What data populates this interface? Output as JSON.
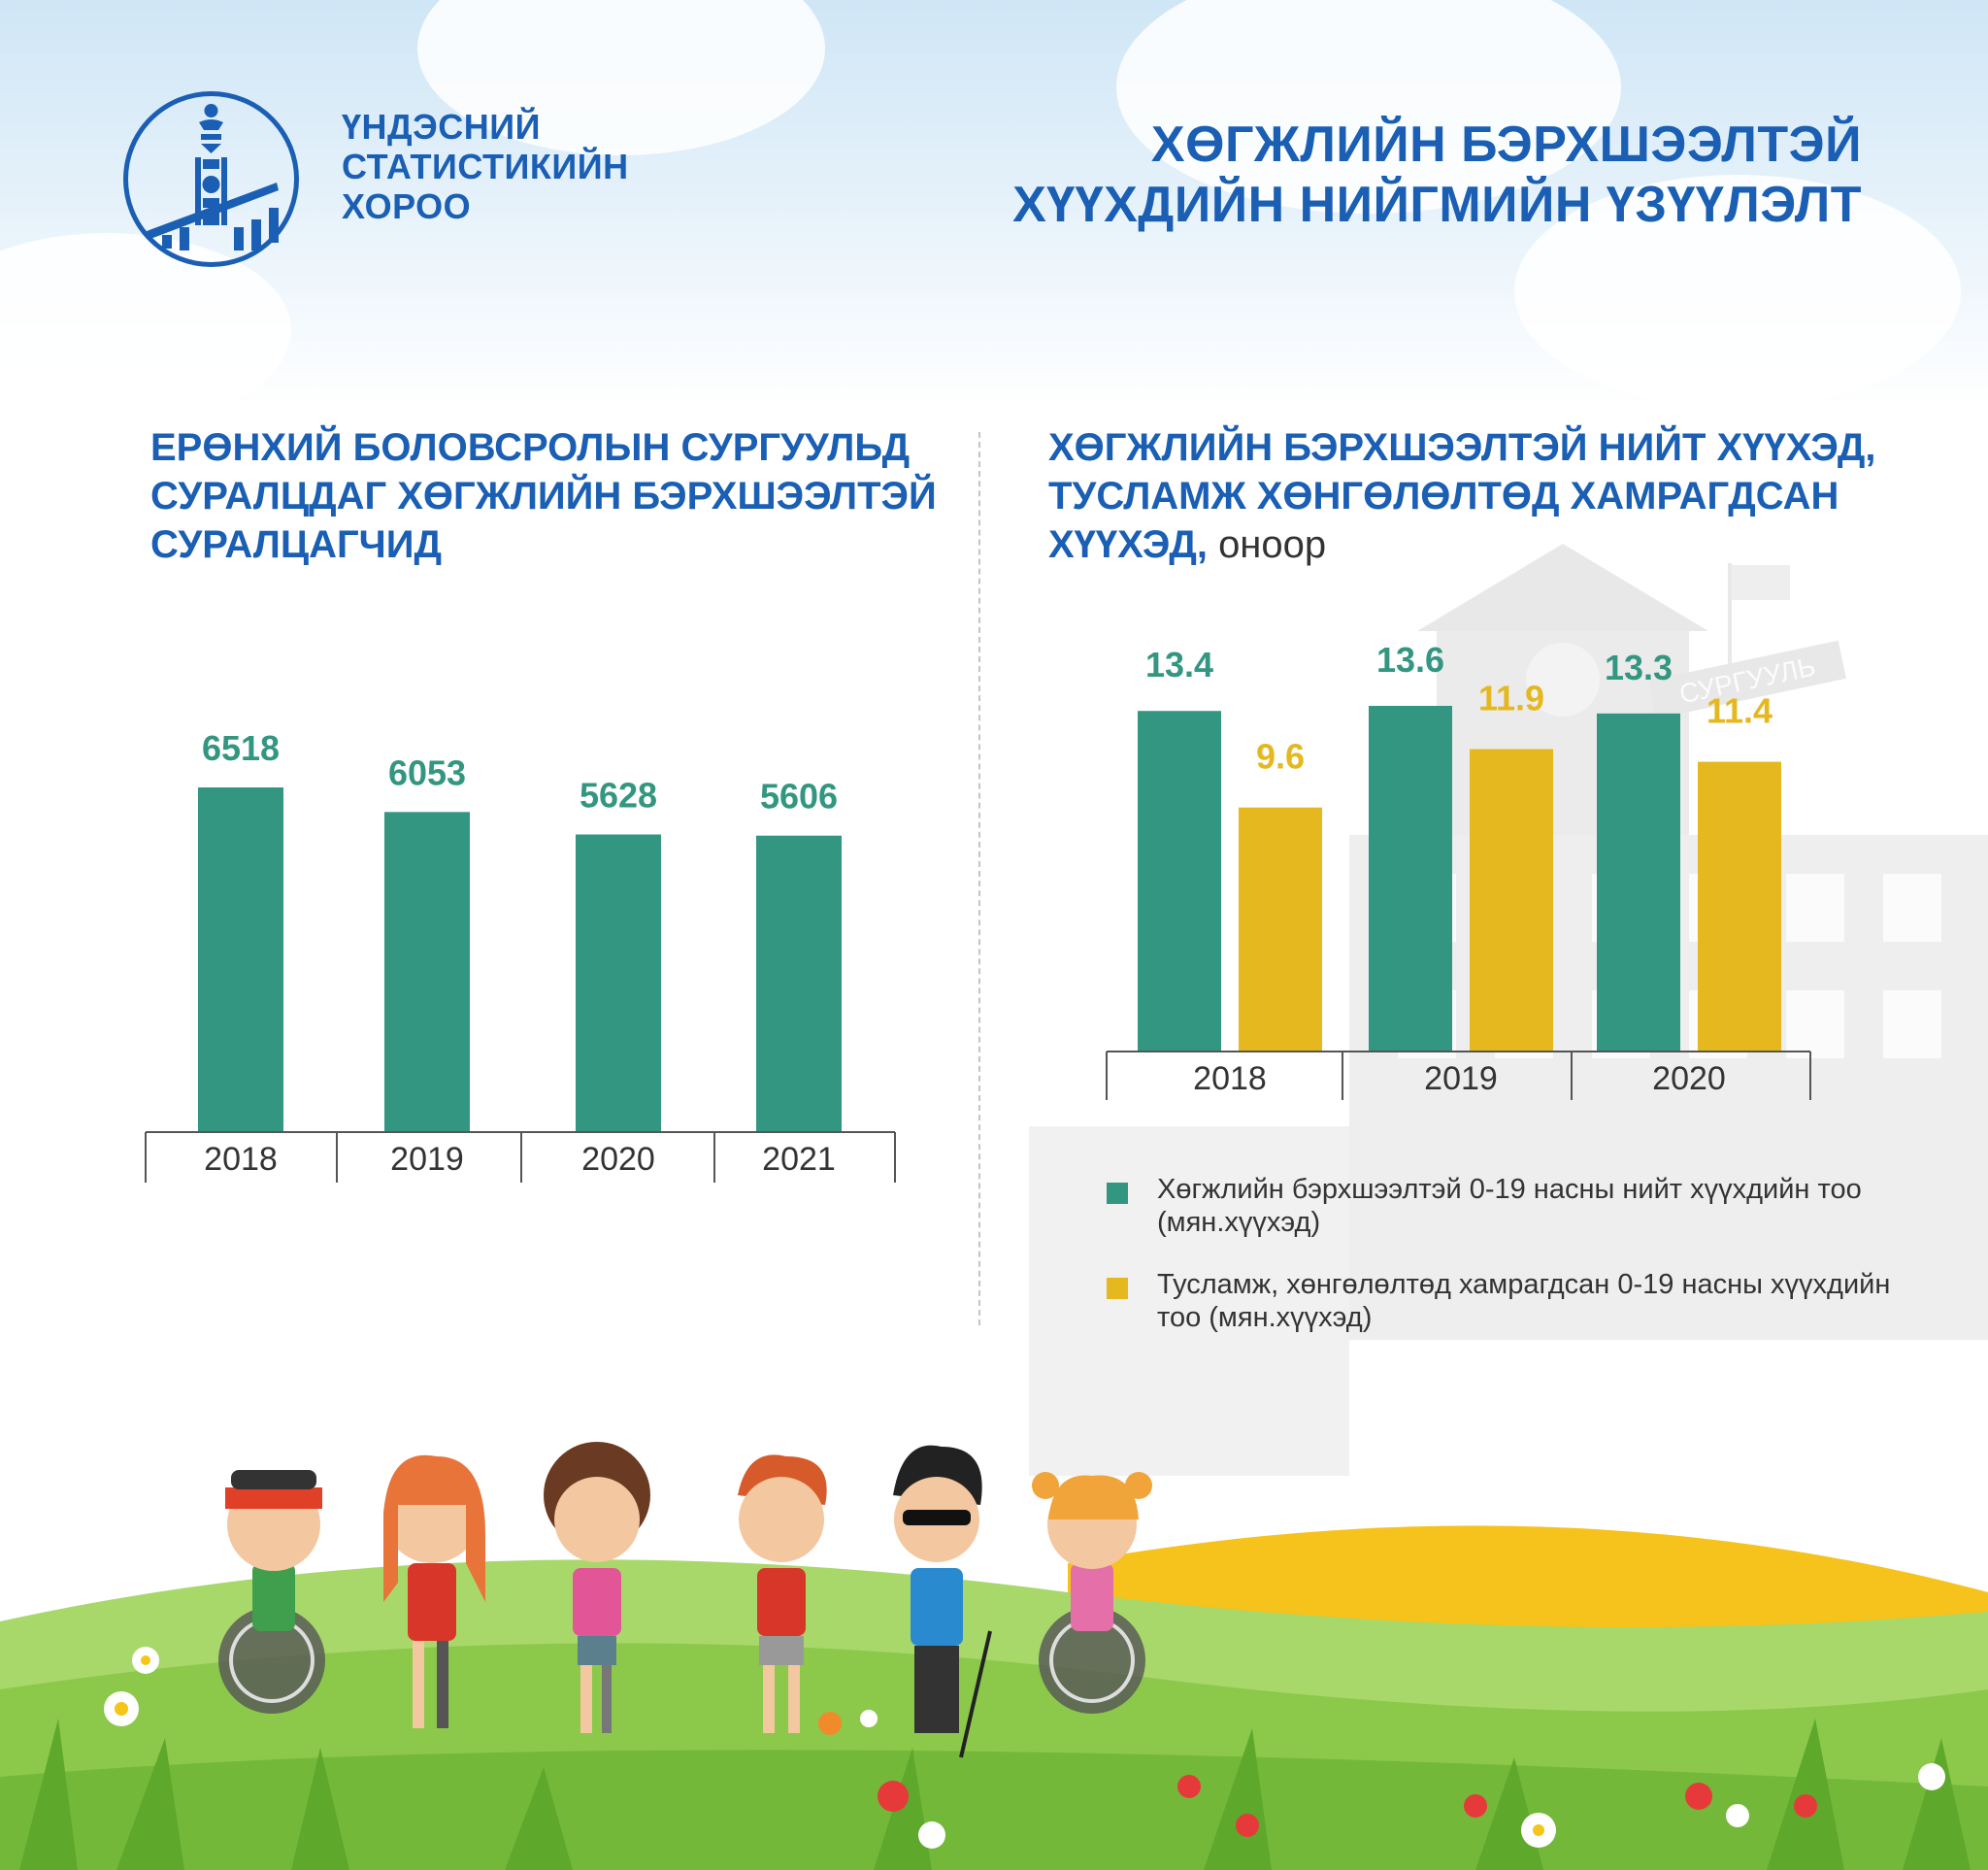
{
  "header": {
    "org_name_lines": [
      "ҮНДЭСНИЙ",
      "СТАТИСТИКИЙН",
      "ХОРОО"
    ],
    "title_lines": [
      "ХӨГЖЛИЙН БЭРХШЭЭЛТЭЙ",
      "ХҮҮХДИЙН НИЙГМИЙН ҮЗҮҮЛЭЛТ"
    ]
  },
  "building": {
    "sign": "СУРГУУЛЬ"
  },
  "colors": {
    "brand_blue": "#1a5fb4",
    "teal": "#339680",
    "gold": "#e5b820",
    "axis": "#555555"
  },
  "chart_data": [
    {
      "type": "bar",
      "title_lines": [
        "ЕРӨНХИЙ БОЛОВСРОЛЫН СУРГУУЛЬД",
        "СУРАЛЦДАГ ХӨГЖЛИЙН БЭРХШЭЭЛТЭЙ",
        "СУРАЛЦАГЧИД"
      ],
      "categories": [
        "2018",
        "2019",
        "2020",
        "2021"
      ],
      "values": [
        6518,
        6053,
        5628,
        5606
      ],
      "labels": [
        "6518",
        "6053",
        "5628",
        "5606"
      ],
      "ylim": [
        0,
        6518
      ],
      "grid": false
    },
    {
      "type": "bar",
      "title_lines": [
        "ХӨГЖЛИЙН БЭРХШЭЭЛТЭЙ НИЙТ ХҮҮХЭД,",
        "ТУСЛАМЖ ХӨНГӨЛӨЛТӨД ХАМРАГДСАН",
        "ХҮҮХЭД,"
      ],
      "unit_suffix": "оноор",
      "categories": [
        "2018",
        "2019",
        "2020"
      ],
      "series": [
        {
          "name": "Хөгжлийн бэрхшээлтэй 0-19 насны нийт хүүхдийн тоо (мян.хүүхэд)",
          "values": [
            13.4,
            13.6,
            13.3
          ],
          "labels": [
            "13.4",
            "13.6",
            "13.3"
          ],
          "color": "#339680"
        },
        {
          "name": "Тусламж, хөнгөлөлтөд хамрагдсан 0-19 насны хүүхдийн тоо (мян.хүүхэд)",
          "values": [
            9.6,
            11.9,
            11.4
          ],
          "labels": [
            "9.6",
            "11.9",
            "11.4"
          ],
          "color": "#e5b820"
        }
      ],
      "legend_position": "bottom",
      "grid": false
    }
  ]
}
